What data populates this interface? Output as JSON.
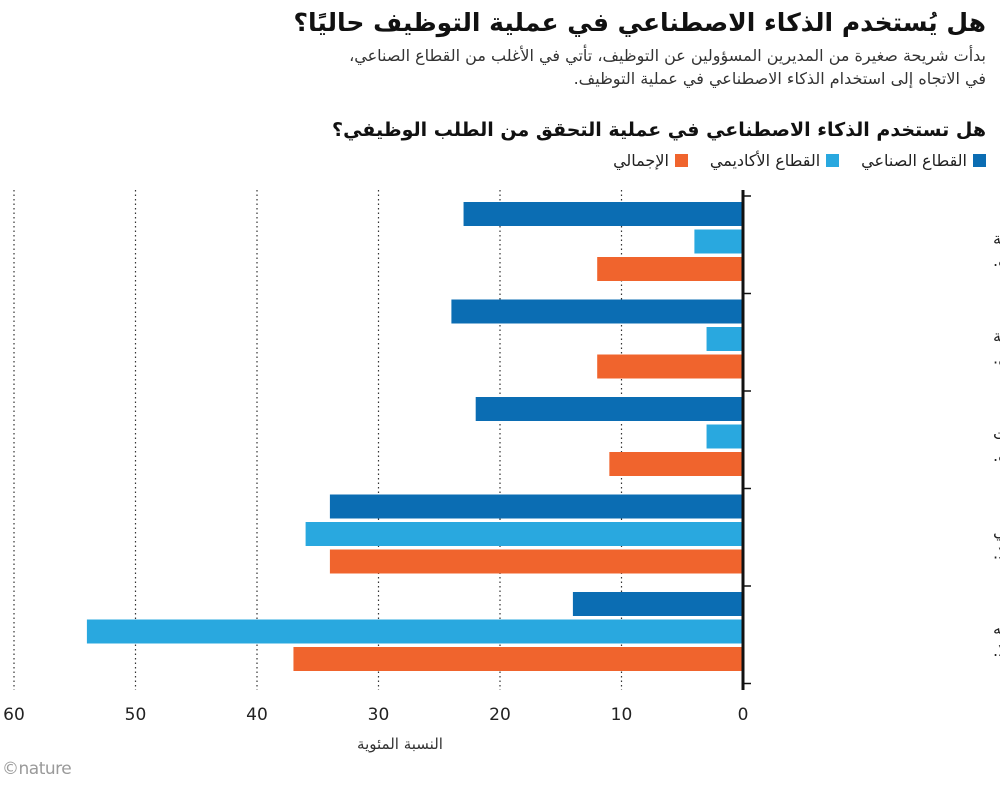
{
  "headline": "هل يُستخدم الذكاء الاصطناعي في عملية التوظيف حاليًا؟",
  "standfirst": "بدأت شريحة صغيرة من المديرين المسؤولين عن التوظيف، تأتي في الأغلب من القطاع الصناعي، في الاتجاه إلى استخدام الذكاء الاصطناعي في عملية التوظيف.",
  "credit": "©nature",
  "colors": {
    "industry": "#0b6db3",
    "academia": "#29a8df",
    "overall": "#f0642d"
  },
  "chart_data": {
    "type": "bar",
    "orientation": "horizontal",
    "title": "هل تستخدم الذكاء الاصطناعي في عملية التحقق من الطلب الوظيفي؟",
    "xlabel": "النسبة المئوية",
    "xlim": [
      0,
      60
    ],
    "xticks": [
      0,
      10,
      20,
      30,
      40,
      50,
      60
    ],
    "grid": true,
    "legend_position": "top-right",
    "categories": [
      [
        "نعم، لمعاينة",
        "طلبات التوظيف."
      ],
      [
        "نعم، لتصميم أسئلة",
        "مقابلة العمل."
      ],
      [
        "نعم، لإدارة طلبات",
        "التوظيف."
      ],
      [
        "لا، لكنني أفكر في",
        "استخدامه مستقبلًا."
      ],
      [
        "لا، ولست أفكر في استخدامه",
        "لهذا الغرض مستقبلًا."
      ]
    ],
    "series": [
      {
        "name": "القطاع الصناعي",
        "color": "#0b6db3",
        "values": [
          23,
          24,
          22,
          34,
          14
        ]
      },
      {
        "name": "القطاع الأكاديمي",
        "color": "#29a8df",
        "values": [
          4,
          3,
          3,
          36,
          54
        ]
      },
      {
        "name": "الإجمالي",
        "color": "#f0642d",
        "values": [
          12,
          12,
          11,
          34,
          37
        ]
      }
    ]
  }
}
